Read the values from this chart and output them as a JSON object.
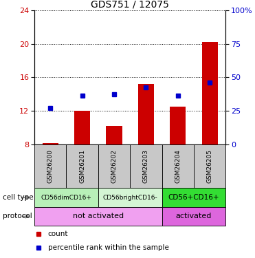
{
  "title": "GDS751 / 12075",
  "samples": [
    "GSM26200",
    "GSM26201",
    "GSM26202",
    "GSM26203",
    "GSM26204",
    "GSM26205"
  ],
  "bar_values": [
    8.1,
    12.0,
    10.2,
    15.2,
    12.5,
    20.2
  ],
  "dot_values": [
    12.3,
    13.8,
    14.0,
    14.8,
    13.8,
    15.4
  ],
  "bar_bottom": 8.0,
  "ylim": [
    8,
    24
  ],
  "yticks_left": [
    8,
    12,
    16,
    20,
    24
  ],
  "yticks_right_labels": [
    "0",
    "25",
    "50",
    "75",
    "100%"
  ],
  "yticks_right_positions": [
    8,
    12,
    16,
    20,
    24
  ],
  "bar_color": "#cc0000",
  "dot_color": "#0000cc",
  "xlabel_color_left": "#cc0000",
  "xlabel_color_right": "#0000cc",
  "bar_width": 0.5,
  "cell_type_info": [
    [
      0,
      2,
      "#b8f0b8",
      "CD56dimCD16+",
      6.5
    ],
    [
      2,
      4,
      "#d4f5d4",
      "CD56brightCD16-",
      6.5
    ],
    [
      4,
      6,
      "#33dd33",
      "CD56+CD16+",
      7.5
    ]
  ],
  "protocol_info": [
    [
      0,
      4,
      "#f0a0f0",
      "not activated",
      8
    ],
    [
      4,
      6,
      "#dd66dd",
      "activated",
      8
    ]
  ],
  "sample_box_color": "#c8c8c8",
  "legend_count": "count",
  "legend_pct": "percentile rank within the sample",
  "arrow_color": "#888888",
  "label_cell_type": "cell type",
  "label_protocol": "protocol"
}
